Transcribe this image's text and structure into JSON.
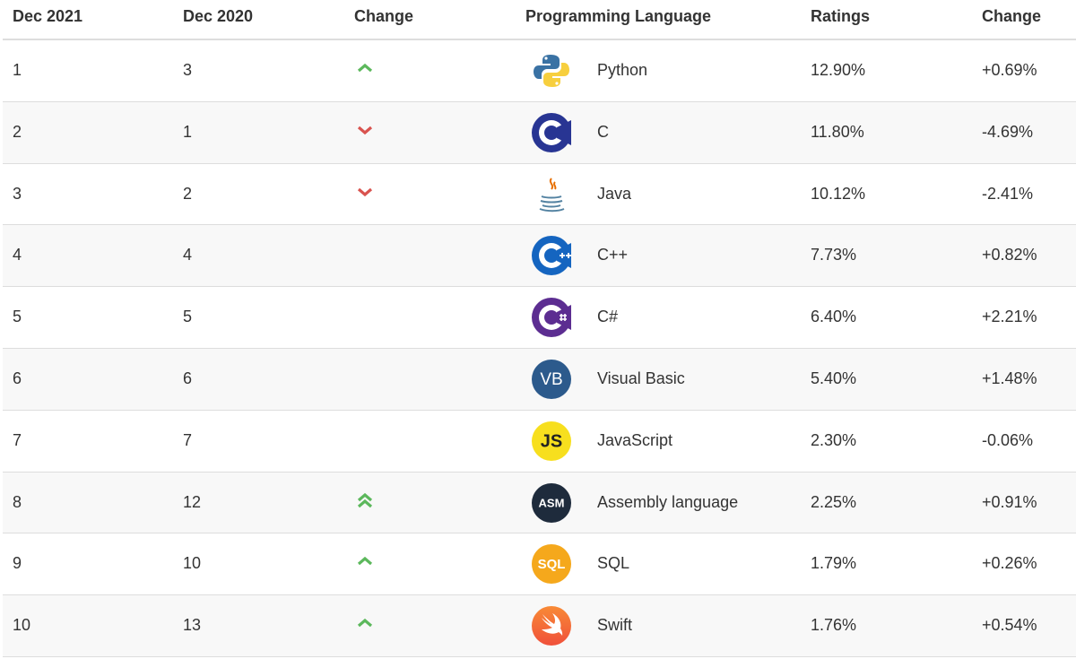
{
  "table": {
    "headers": [
      "Dec 2021",
      "Dec 2020",
      "Change",
      "Programming Language",
      "Ratings",
      "Change"
    ],
    "rows": [
      {
        "cells": [
          "1",
          "3",
          "Python",
          "12.90%",
          "+0.69%"
        ]
      },
      {
        "cells": [
          "2",
          "1",
          "C",
          "11.80%",
          "-4.69%"
        ]
      },
      {
        "cells": [
          "3",
          "2",
          "Java",
          "10.12%",
          "-2.41%"
        ]
      },
      {
        "cells": [
          "4",
          "4",
          "C++",
          "7.73%",
          "+0.82%"
        ]
      },
      {
        "cells": [
          "5",
          "5",
          "C#",
          "6.40%",
          "+2.21%"
        ]
      },
      {
        "cells": [
          "6",
          "6",
          "Visual Basic",
          "5.40%",
          "+1.48%"
        ],
        "logo_text": "VB"
      },
      {
        "cells": [
          "7",
          "7",
          "JavaScript",
          "2.30%",
          "-0.06%"
        ],
        "logo_text": "JS"
      },
      {
        "cells": [
          "8",
          "12",
          "Assembly language",
          "2.25%",
          "+0.91%"
        ],
        "logo_text": "ASM"
      },
      {
        "cells": [
          "9",
          "10",
          "SQL",
          "1.79%",
          "+0.26%"
        ],
        "logo_text": "SQL"
      },
      {
        "cells": [
          "10",
          "13",
          "Swift",
          "1.76%",
          "+0.54%"
        ]
      }
    ]
  }
}
